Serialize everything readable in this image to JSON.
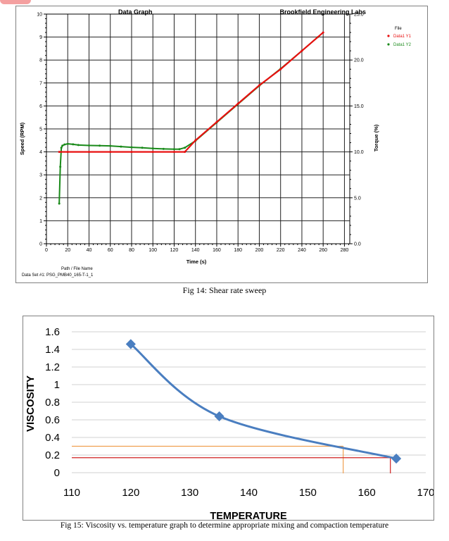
{
  "figure1": {
    "caption": "Fig 14: Shear rate sweep",
    "chart_data": {
      "type": "line",
      "title": "Data Graph",
      "brand": "Brookfield Engineering Labs",
      "xlabel": "Time (s)",
      "ylabel": "Speed (RPM)",
      "y2label": "Torque (%)",
      "xlim": [
        0,
        285
      ],
      "ylim": [
        0,
        10
      ],
      "y2lim": [
        0.0,
        25.0
      ],
      "x_ticks": [
        0,
        20,
        40,
        60,
        80,
        100,
        120,
        140,
        160,
        180,
        200,
        220,
        240,
        260,
        280
      ],
      "y_ticks": [
        0,
        1,
        2,
        3,
        4,
        5,
        6,
        7,
        8,
        9,
        10
      ],
      "y2_ticks": [
        "0.0",
        "5.0",
        "10.0",
        "15.0",
        "20.0",
        "25.0"
      ],
      "grid": true,
      "legend_title": "File",
      "legend_position": "top-right",
      "footer_label": "Path / File Name",
      "footer_text": "Data Set #1: PSG_PMB40_165-T-1_1",
      "series": [
        {
          "name": "Data1 Y1",
          "color": "#e81010",
          "x": [
            12,
            20,
            40,
            60,
            80,
            100,
            120,
            130,
            140,
            160,
            180,
            200,
            220,
            240,
            260
          ],
          "y": [
            4.0,
            4.0,
            4.0,
            4.0,
            4.0,
            4.0,
            4.0,
            4.0,
            4.5,
            5.3,
            6.1,
            6.9,
            7.6,
            8.4,
            9.2
          ]
        },
        {
          "name": "Data1 Y2",
          "color": "#1a8a1a",
          "x": [
            12,
            13,
            14,
            15,
            17,
            20,
            25,
            30,
            40,
            50,
            60,
            70,
            80,
            90,
            100,
            110,
            120,
            125,
            130,
            140,
            160,
            180,
            200,
            220,
            240,
            255
          ],
          "y": [
            1.75,
            3.35,
            4.18,
            4.27,
            4.32,
            4.35,
            4.33,
            4.3,
            4.28,
            4.27,
            4.26,
            4.23,
            4.2,
            4.18,
            4.15,
            4.13,
            4.12,
            4.12,
            4.18,
            4.48,
            5.28,
            6.08,
            6.88,
            7.62,
            8.4,
            9.0
          ]
        }
      ]
    }
  },
  "figure2": {
    "caption": "Fig 15: Viscosity vs. temperature graph to determine appropriate mixing and compaction temperature",
    "chart_data": {
      "type": "line",
      "title": "",
      "xlabel": "TEMPERATURE",
      "ylabel": "VISCOSITY",
      "xlim": [
        110,
        170
      ],
      "ylim": [
        0,
        1.6
      ],
      "x_ticks": [
        "110",
        "120",
        "130",
        "140",
        "150",
        "160",
        "170"
      ],
      "y_ticks": [
        "0",
        "0.2",
        "0.4",
        "0.6",
        "0.8",
        "1",
        "1.2",
        "1.4",
        "1.6"
      ],
      "grid": true,
      "series": [
        {
          "color": "#4a7ec0",
          "x": [
            120,
            135,
            165
          ],
          "y": [
            1.46,
            0.64,
            0.16
          ]
        }
      ],
      "reference_lines": [
        {
          "color": "#f0a050",
          "y": 0.3,
          "x": 156
        },
        {
          "color": "#d02020",
          "y": 0.17,
          "x": 164
        }
      ]
    }
  }
}
